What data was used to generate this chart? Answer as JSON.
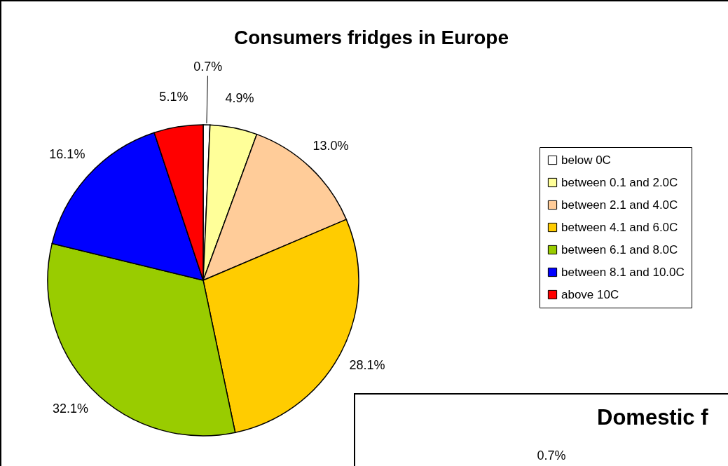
{
  "chart_data": [
    {
      "type": "pie",
      "title": "Consumers fridges in Europe",
      "categories": [
        "below 0C",
        "between 0.1 and 2.0C",
        "between 2.1 and 4.0C",
        "between 4.1 and 6.0C",
        "between 6.1 and 8.0C",
        "between 8.1 and 10.0C",
        "above 10C"
      ],
      "values": [
        0.7,
        4.9,
        13.0,
        28.1,
        32.1,
        16.1,
        5.1
      ],
      "value_labels": [
        "0.7%",
        "4.9%",
        "13.0%",
        "28.1%",
        "32.1%",
        "16.1%",
        "5.1%"
      ],
      "colors": [
        "#ffffff",
        "#ffff99",
        "#ffcc99",
        "#ffcc00",
        "#99cc00",
        "#0000ff",
        "#ff0000"
      ],
      "legend": "right"
    },
    {
      "type": "other",
      "title": "Domestic f",
      "annotations": [
        "0.7%"
      ]
    }
  ]
}
